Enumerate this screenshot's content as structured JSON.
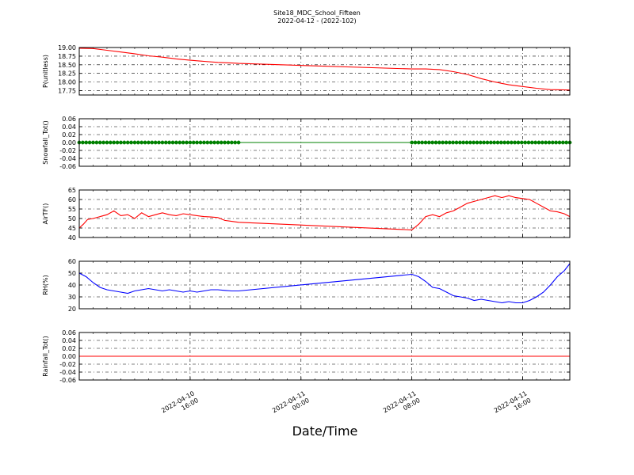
{
  "figure": {
    "title": "Site18_MDC_School_Fifteen",
    "subtitle": "2022-04-12 - (2022-102)",
    "xlabel": "Date/Time",
    "x_ticks": [
      {
        "hour": 16,
        "line1": "2022-04-10",
        "line2": "16:00"
      },
      {
        "hour": 24,
        "line1": "2022-04-11",
        "line2": "00:00"
      },
      {
        "hour": 32,
        "line1": "2022-04-11",
        "line2": "08:00"
      },
      {
        "hour": 40,
        "line1": "2022-04-11",
        "line2": "16:00"
      }
    ],
    "x_range_hours": [
      8.0,
      43.4
    ]
  },
  "chart_data": [
    {
      "type": "line",
      "ylabel": "P(unitless)",
      "ylim": [
        17.625,
        19.0
      ],
      "yticks": [
        "19.00",
        "18.75",
        "18.50",
        "18.25",
        "18.00",
        "17.75"
      ],
      "grid": true,
      "series": [
        {
          "color": "#ff0000",
          "marker": false,
          "x": [
            8.0,
            9.0,
            10.0,
            11.0,
            12.0,
            13.0,
            14.0,
            15.0,
            16.0,
            17.0,
            18.0,
            19.0,
            19.5,
            32.0,
            33.0,
            34.0,
            35.0,
            36.0,
            37.0,
            38.0,
            39.0,
            40.0,
            41.0,
            42.0,
            43.4
          ],
          "y": [
            18.98,
            18.97,
            18.92,
            18.87,
            18.82,
            18.76,
            18.72,
            18.67,
            18.63,
            18.6,
            18.57,
            18.55,
            18.54,
            18.38,
            18.38,
            18.36,
            18.3,
            18.22,
            18.1,
            18.0,
            17.92,
            17.87,
            17.82,
            17.78,
            17.77
          ]
        }
      ]
    },
    {
      "type": "line",
      "ylabel": "Snowfall_Tot()",
      "ylim": [
        -0.06,
        0.06
      ],
      "yticks": [
        "0.06",
        "0.04",
        "0.02",
        "0.00",
        "-0.02",
        "-0.04",
        "-0.06"
      ],
      "grid": true,
      "series": [
        {
          "color": "#008000",
          "marker": true,
          "x": [
            8.0,
            19.5,
            32.0,
            43.4
          ],
          "y": [
            0.0,
            0.0,
            0.0,
            0.0
          ]
        }
      ]
    },
    {
      "type": "line",
      "ylabel": "AirTF()",
      "ylim": [
        40,
        65
      ],
      "yticks": [
        "65",
        "60",
        "55",
        "50",
        "45",
        "40"
      ],
      "grid": true,
      "series": [
        {
          "color": "#ff0000",
          "marker": false,
          "x": [
            8.0,
            8.3,
            8.6,
            9.0,
            9.5,
            10.0,
            10.5,
            11.0,
            11.5,
            12.0,
            12.5,
            13.0,
            13.5,
            14.0,
            14.5,
            15.0,
            15.5,
            16.0,
            16.5,
            17.0,
            17.5,
            18.0,
            18.5,
            19.0,
            19.5,
            32.0,
            32.5,
            33.0,
            33.5,
            34.0,
            34.5,
            35.0,
            35.5,
            36.0,
            36.5,
            37.0,
            37.5,
            38.0,
            38.5,
            39.0,
            39.5,
            40.0,
            40.5,
            41.0,
            41.5,
            42.0,
            42.5,
            43.0,
            43.4
          ],
          "y": [
            45,
            47,
            49.5,
            50,
            51,
            52,
            54,
            51.5,
            52,
            50,
            53,
            51,
            52,
            53,
            52,
            51.5,
            52.5,
            52,
            51.5,
            51,
            50.8,
            50.5,
            49,
            48.5,
            48,
            44,
            47,
            51,
            52,
            51,
            53,
            54,
            56,
            58,
            59,
            60,
            61,
            62,
            61,
            62,
            61,
            60.5,
            60,
            58,
            56,
            54,
            53.5,
            52.5,
            51
          ]
        }
      ]
    },
    {
      "type": "line",
      "ylabel": "RH(%)",
      "ylim": [
        20,
        60
      ],
      "yticks": [
        "60",
        "50",
        "40",
        "30",
        "20"
      ],
      "grid": true,
      "series": [
        {
          "color": "#0000ff",
          "marker": false,
          "x": [
            8.0,
            8.5,
            9.0,
            9.5,
            10.0,
            10.5,
            11.0,
            11.5,
            12.0,
            12.5,
            13.0,
            13.5,
            14.0,
            14.5,
            15.0,
            15.5,
            16.0,
            16.5,
            17.0,
            17.5,
            18.0,
            18.5,
            19.0,
            19.5,
            32.0,
            32.5,
            33.0,
            33.5,
            34.0,
            34.5,
            35.0,
            35.5,
            36.0,
            36.5,
            37.0,
            37.5,
            38.0,
            38.5,
            39.0,
            39.5,
            40.0,
            40.5,
            41.0,
            41.5,
            42.0,
            42.5,
            43.0,
            43.4
          ],
          "y": [
            50,
            47,
            42,
            38,
            36,
            35,
            34,
            33,
            35,
            36,
            37,
            36,
            35,
            36,
            35,
            34,
            35,
            34,
            35,
            36,
            36,
            35.5,
            35,
            35,
            49,
            47,
            43,
            38,
            37,
            34,
            31,
            30,
            29,
            27,
            28,
            27,
            26,
            25,
            26,
            25,
            25,
            27,
            30,
            34,
            40,
            47,
            52,
            58
          ]
        }
      ]
    },
    {
      "type": "line",
      "ylabel": "Rainfall_Tot()",
      "ylim": [
        -0.06,
        0.06
      ],
      "yticks": [
        "0.06",
        "0.04",
        "0.02",
        "0.00",
        "-0.02",
        "-0.04",
        "-0.06"
      ],
      "grid": true,
      "series": [
        {
          "color": "#ff0000",
          "marker": false,
          "x": [
            8.0,
            43.4
          ],
          "y": [
            0.0,
            0.0
          ]
        }
      ]
    }
  ]
}
